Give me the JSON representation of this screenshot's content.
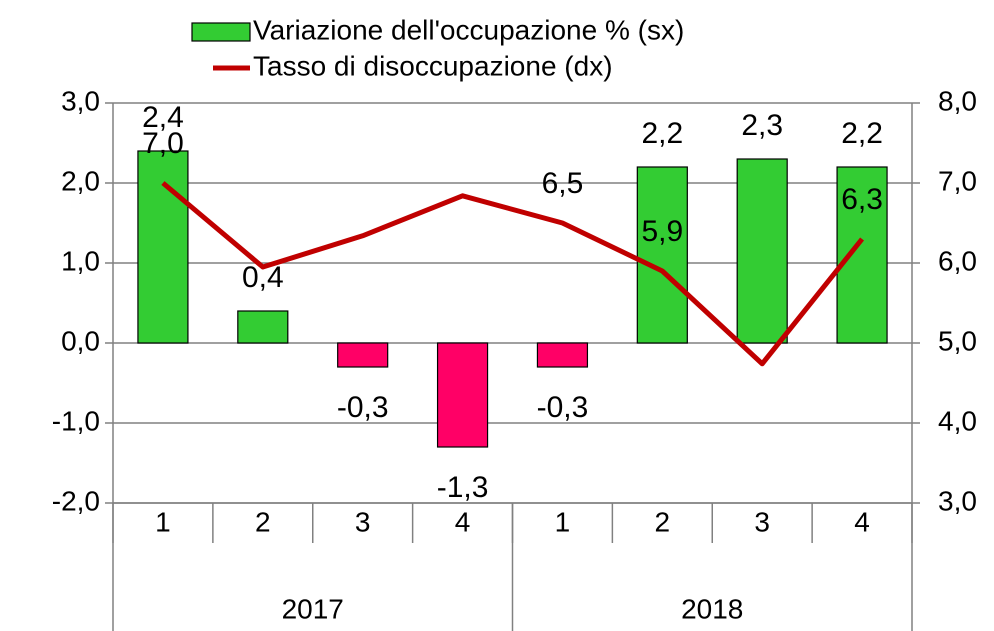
{
  "chart_data": {
    "type": "bar-line",
    "categories": [
      "1",
      "2",
      "3",
      "4",
      "1",
      "2",
      "3",
      "4"
    ],
    "groups": [
      {
        "name": "2017",
        "count": 4
      },
      {
        "name": "2018",
        "count": 4
      }
    ],
    "series": [
      {
        "name": "Variazione dell'occupazione % (sx)",
        "type": "bar",
        "axis": "y",
        "color": "#33cc33",
        "negative_color": "#ff0066",
        "label_color": "#000000",
        "negative_label_color": "#ff0000",
        "values": [
          2.4,
          0.4,
          -0.3,
          -1.3,
          -0.3,
          2.2,
          2.3,
          2.2
        ],
        "value_labels": [
          "2,4",
          "0,4",
          "-0,3",
          "-1,3",
          "-0,3",
          "2,2",
          "2,3",
          "2,2"
        ]
      },
      {
        "name": "Tasso di disoccupazione (dx)",
        "type": "line",
        "axis": "y2",
        "color": "#c00000",
        "label_color": "#cc0000",
        "values": [
          7.0,
          5.95,
          6.34,
          6.84,
          6.5,
          5.9,
          4.74,
          6.3
        ],
        "value_labels": [
          "7,0",
          null,
          null,
          null,
          "6,5",
          "5,9",
          null,
          "6,3"
        ]
      }
    ],
    "ylim": [
      -2,
      3
    ],
    "yticks": [
      {
        "value": -2,
        "label": "-2,0"
      },
      {
        "value": -1,
        "label": "-1,0"
      },
      {
        "value": 0,
        "label": "0,0"
      },
      {
        "value": 1,
        "label": "1,0"
      },
      {
        "value": 2,
        "label": "2,0"
      },
      {
        "value": 3,
        "label": "3,0"
      }
    ],
    "negative_tick_color": "#ff0000",
    "y2lim": [
      3,
      8
    ],
    "y2ticks": [
      {
        "value": 3,
        "label": "3,0"
      },
      {
        "value": 4,
        "label": "4,0"
      },
      {
        "value": 5,
        "label": "5,0"
      },
      {
        "value": 6,
        "label": "6,0"
      },
      {
        "value": 7,
        "label": "7,0"
      },
      {
        "value": 8,
        "label": "8,0"
      }
    ],
    "grid": true,
    "legend": "top"
  }
}
